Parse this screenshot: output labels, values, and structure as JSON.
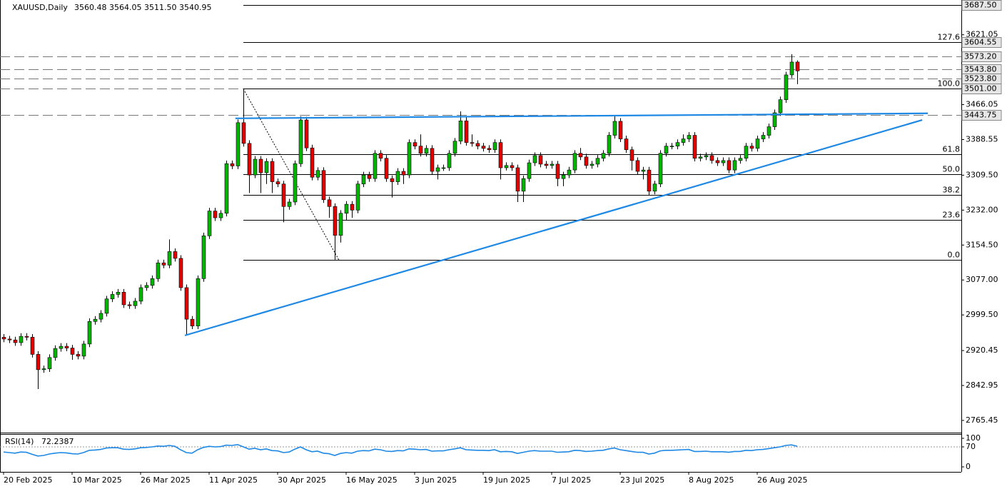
{
  "chart_data": {
    "type": "candlestick",
    "title": "XAUUSD,Daily",
    "ohlc_labels": [
      "3560.48",
      "3564.05",
      "3511.50",
      "3540.95"
    ],
    "up_color": "#00b400",
    "down_color": "#e00000",
    "ylim": [
      2740,
      3695
    ],
    "yticks": [
      3621.05,
      3466.05,
      3388.55,
      {
        "value": 3309.5,
        "label": "3309.50"
      },
      {
        "value": 3232,
        "label": "3232.00"
      },
      {
        "value": 3154.5,
        "label": "3154.50"
      },
      {
        "value": 3077,
        "label": "3077.00"
      },
      {
        "value": 2999.5,
        "label": "2999.50"
      },
      2920.45,
      2842.95,
      2765.45
    ],
    "categories": [
      "20 Feb 2025",
      null,
      null,
      null,
      null,
      null,
      null,
      null,
      null,
      null,
      null,
      null,
      "10 Mar 2025",
      null,
      null,
      null,
      null,
      null,
      null,
      null,
      null,
      null,
      null,
      null,
      "26 Mar 2025",
      null,
      null,
      null,
      null,
      null,
      null,
      null,
      null,
      null,
      null,
      null,
      "11 Apr 2025",
      null,
      null,
      null,
      null,
      null,
      null,
      null,
      null,
      null,
      null,
      null,
      "30 Apr 2025",
      null,
      null,
      null,
      null,
      null,
      null,
      null,
      null,
      null,
      null,
      null,
      "16 May 2025",
      null,
      null,
      null,
      null,
      null,
      null,
      null,
      null,
      null,
      null,
      null,
      "3 Jun 2025",
      null,
      null,
      null,
      null,
      null,
      null,
      null,
      null,
      null,
      null,
      null,
      "19 Jun 2025",
      null,
      null,
      null,
      null,
      null,
      null,
      null,
      null,
      null,
      null,
      null,
      "7 Jul 2025",
      null,
      null,
      null,
      null,
      null,
      null,
      null,
      null,
      null,
      null,
      null,
      "23 Jul 2025",
      null,
      null,
      null,
      null,
      null,
      null,
      null,
      null,
      null,
      null,
      null,
      "8 Aug 2025",
      null,
      null,
      null,
      null,
      null,
      null,
      null,
      null,
      null,
      null,
      null,
      "26 Aug 2025",
      null,
      null,
      null,
      null,
      null,
      null,
      null
    ],
    "ohlc": [
      [
        2950,
        2957,
        2939,
        2946
      ],
      [
        2946,
        2953,
        2937,
        2944
      ],
      [
        2944,
        2951,
        2931,
        2938
      ],
      [
        2938,
        2959,
        2931,
        2952
      ],
      [
        2952,
        2959,
        2943,
        2950
      ],
      [
        2950,
        2957,
        2905,
        2912
      ],
      [
        2912,
        2919,
        2835,
        2878
      ],
      [
        2878,
        2887,
        2871,
        2880
      ],
      [
        2880,
        2912,
        2873,
        2905
      ],
      [
        2905,
        2932,
        2898,
        2925
      ],
      [
        2925,
        2937,
        2918,
        2930
      ],
      [
        2930,
        2937,
        2919,
        2926
      ],
      [
        2926,
        2933,
        2900,
        2912
      ],
      [
        2912,
        2919,
        2901,
        2908
      ],
      [
        2908,
        2942,
        2901,
        2935
      ],
      [
        2935,
        2992,
        2928,
        2985
      ],
      [
        2985,
        2997,
        2978,
        2990
      ],
      [
        2990,
        3010,
        2983,
        3003
      ],
      [
        3003,
        3042,
        2996,
        3035
      ],
      [
        3035,
        3052,
        3028,
        3045
      ],
      [
        3045,
        3057,
        3038,
        3050
      ],
      [
        3050,
        3057,
        3015,
        3022
      ],
      [
        3022,
        3029,
        3013,
        3020
      ],
      [
        3020,
        3037,
        3013,
        3030
      ],
      [
        3030,
        3067,
        3023,
        3060
      ],
      [
        3060,
        3072,
        3053,
        3065
      ],
      [
        3065,
        3087,
        3058,
        3080
      ],
      [
        3080,
        3122,
        3073,
        3115
      ],
      [
        3115,
        3122,
        3103,
        3110
      ],
      [
        3110,
        3167,
        3103,
        3140
      ],
      [
        3140,
        3147,
        3118,
        3125
      ],
      [
        3125,
        3132,
        3053,
        3060
      ],
      [
        3060,
        3067,
        2955,
        2990
      ],
      [
        2990,
        2997,
        2968,
        2975
      ],
      [
        2975,
        3087,
        2968,
        3080
      ],
      [
        3080,
        3182,
        3073,
        3175
      ],
      [
        3175,
        3237,
        3168,
        3230
      ],
      [
        3230,
        3237,
        3208,
        3215
      ],
      [
        3215,
        3232,
        3208,
        3225
      ],
      [
        3225,
        3342,
        3218,
        3335
      ],
      [
        3335,
        3342,
        3323,
        3330
      ],
      [
        3330,
        3433,
        3323,
        3426
      ],
      [
        3426,
        3500,
        3373,
        3380
      ],
      [
        3380,
        3387,
        3270,
        3310
      ],
      [
        3310,
        3352,
        3303,
        3345
      ],
      [
        3345,
        3352,
        3270,
        3315
      ],
      [
        3315,
        3347,
        3290,
        3340
      ],
      [
        3340,
        3347,
        3270,
        3295
      ],
      [
        3295,
        3302,
        3283,
        3290
      ],
      [
        3290,
        3297,
        3205,
        3240
      ],
      [
        3240,
        3257,
        3233,
        3250
      ],
      [
        3250,
        3342,
        3243,
        3335
      ],
      [
        3335,
        3440,
        3328,
        3432
      ],
      [
        3432,
        3439,
        3363,
        3370
      ],
      [
        3370,
        3377,
        3298,
        3305
      ],
      [
        3305,
        3327,
        3298,
        3320
      ],
      [
        3320,
        3327,
        3248,
        3255
      ],
      [
        3255,
        3262,
        3215,
        3240
      ],
      [
        3240,
        3247,
        3122,
        3176
      ],
      [
        3176,
        3232,
        3160,
        3225
      ],
      [
        3225,
        3252,
        3210,
        3245
      ],
      [
        3245,
        3252,
        3215,
        3232
      ],
      [
        3232,
        3297,
        3225,
        3290
      ],
      [
        3290,
        3317,
        3283,
        3310
      ],
      [
        3310,
        3317,
        3295,
        3302
      ],
      [
        3302,
        3365,
        3295,
        3358
      ],
      [
        3358,
        3365,
        3340,
        3347
      ],
      [
        3347,
        3354,
        3295,
        3302
      ],
      [
        3302,
        3309,
        3260,
        3295
      ],
      [
        3295,
        3325,
        3288,
        3318
      ],
      [
        3318,
        3325,
        3290,
        3310
      ],
      [
        3310,
        3389,
        3303,
        3382
      ],
      [
        3382,
        3389,
        3367,
        3374
      ],
      [
        3374,
        3400,
        3351,
        3358
      ],
      [
        3358,
        3376,
        3351,
        3369
      ],
      [
        3369,
        3376,
        3311,
        3318
      ],
      [
        3318,
        3333,
        3300,
        3326
      ],
      [
        3326,
        3333,
        3319,
        3326
      ],
      [
        3326,
        3365,
        3319,
        3358
      ],
      [
        3358,
        3392,
        3351,
        3385
      ],
      [
        3385,
        3451,
        3378,
        3430
      ],
      [
        3430,
        3440,
        3375,
        3382
      ],
      [
        3382,
        3400,
        3373,
        3380
      ],
      [
        3380,
        3387,
        3367,
        3374
      ],
      [
        3374,
        3381,
        3362,
        3369
      ],
      [
        3369,
        3376,
        3359,
        3366
      ],
      [
        3366,
        3389,
        3359,
        3382
      ],
      [
        3382,
        3389,
        3300,
        3326
      ],
      [
        3326,
        3338,
        3320,
        3331
      ],
      [
        3331,
        3338,
        3319,
        3326
      ],
      [
        3326,
        3333,
        3250,
        3274
      ],
      [
        3274,
        3309,
        3250,
        3302
      ],
      [
        3302,
        3344,
        3295,
        3337
      ],
      [
        3337,
        3360,
        3330,
        3353
      ],
      [
        3353,
        3360,
        3327,
        3334
      ],
      [
        3334,
        3341,
        3324,
        3331
      ],
      [
        3331,
        3341,
        3324,
        3334
      ],
      [
        3334,
        3341,
        3285,
        3302
      ],
      [
        3302,
        3317,
        3285,
        3310
      ],
      [
        3310,
        3328,
        3303,
        3321
      ],
      [
        3321,
        3365,
        3314,
        3358
      ],
      [
        3358,
        3370,
        3343,
        3350
      ],
      [
        3350,
        3357,
        3324,
        3331
      ],
      [
        3331,
        3341,
        3324,
        3334
      ],
      [
        3334,
        3354,
        3327,
        3347
      ],
      [
        3347,
        3365,
        3340,
        3358
      ],
      [
        3358,
        3405,
        3351,
        3398
      ],
      [
        3398,
        3440,
        3391,
        3429
      ],
      [
        3429,
        3436,
        3383,
        3390
      ],
      [
        3390,
        3397,
        3359,
        3366
      ],
      [
        3366,
        3373,
        3320,
        3342
      ],
      [
        3342,
        3349,
        3311,
        3318
      ],
      [
        3318,
        3328,
        3300,
        3321
      ],
      [
        3321,
        3328,
        3265,
        3274
      ],
      [
        3274,
        3297,
        3267,
        3290
      ],
      [
        3290,
        3365,
        3283,
        3358
      ],
      [
        3358,
        3381,
        3351,
        3374
      ],
      [
        3374,
        3381,
        3367,
        3374
      ],
      [
        3374,
        3389,
        3367,
        3382
      ],
      [
        3382,
        3400,
        3375,
        3390
      ],
      [
        3390,
        3405,
        3383,
        3398
      ],
      [
        3398,
        3405,
        3340,
        3347
      ],
      [
        3347,
        3357,
        3340,
        3350
      ],
      [
        3350,
        3360,
        3343,
        3353
      ],
      [
        3353,
        3360,
        3335,
        3342
      ],
      [
        3342,
        3349,
        3330,
        3337
      ],
      [
        3337,
        3349,
        3330,
        3342
      ],
      [
        3342,
        3349,
        3314,
        3321
      ],
      [
        3321,
        3349,
        3314,
        3342
      ],
      [
        3342,
        3354,
        3335,
        3347
      ],
      [
        3347,
        3381,
        3340,
        3374
      ],
      [
        3374,
        3381,
        3362,
        3369
      ],
      [
        3369,
        3397,
        3362,
        3390
      ],
      [
        3390,
        3405,
        3383,
        3398
      ],
      [
        3398,
        3424,
        3391,
        3417
      ],
      [
        3417,
        3455,
        3410,
        3448
      ],
      [
        3448,
        3484,
        3441,
        3477
      ],
      [
        3477,
        3539,
        3470,
        3532
      ],
      [
        3532,
        3578,
        3525,
        3560.48
      ],
      [
        3560.48,
        3564.05,
        3511.5,
        3540.95
      ]
    ],
    "price_levels": [
      {
        "value": 3687.5,
        "label": "3687.50",
        "line": "solid"
      },
      {
        "value": 3604.55,
        "label": "3604.55",
        "line": "none"
      },
      {
        "value": 3573.2,
        "label": "3573.20",
        "line": "dashed"
      },
      {
        "value": 3543.8,
        "label": "3543.80",
        "line": "dashed"
      },
      {
        "value": 3523.8,
        "label": "3523.80",
        "line": "dashed"
      },
      {
        "value": 3501,
        "label": "3501.00",
        "line": "dashed"
      },
      {
        "value": 3443.75,
        "label": "3443.75",
        "line": "dashed"
      }
    ],
    "fib_anchor": {
      "x": [
        42,
        58.75
      ],
      "y": [
        3501,
        3121
      ]
    },
    "fib_levels": [
      {
        "label": "127.6",
        "price": 3604.55
      },
      {
        "label": "100.0",
        "price": 3501
      },
      {
        "label": "61.8",
        "price": 3356
      },
      {
        "label": "50.0",
        "price": 3311
      },
      {
        "label": "38.2",
        "price": 3266
      },
      {
        "label": "23.6",
        "price": 3211
      },
      {
        "label": "0.0",
        "price": 3121
      }
    ],
    "trendlines": [
      {
        "color": "#1e88e5",
        "x": [
          40.6,
          161.9
        ],
        "y": [
          3435.6,
          3446.7
        ]
      },
      {
        "color": "#1e88e5",
        "x": [
          31.75,
          160.9
        ],
        "y": [
          2954,
          3432
        ]
      }
    ],
    "indicator": {
      "name": "RSI(14)",
      "color": "#1e88e5",
      "ylim": [
        0,
        100
      ],
      "yticks": [
        100,
        70,
        0
      ],
      "level": 70,
      "values": [
        52,
        50,
        48,
        52,
        51,
        44,
        38,
        40,
        45,
        48,
        50,
        49,
        46,
        45,
        50,
        58,
        59,
        61,
        66,
        67,
        67,
        62,
        61,
        63,
        67,
        68,
        70,
        73,
        72,
        75,
        72,
        60,
        50,
        48,
        60,
        68,
        72,
        70,
        71,
        76,
        75,
        78,
        70,
        62,
        65,
        60,
        63,
        57,
        56,
        50,
        52,
        62,
        70,
        60,
        53,
        55,
        48,
        46,
        40,
        47,
        50,
        48,
        55,
        57,
        56,
        62,
        60,
        55,
        54,
        57,
        56,
        63,
        62,
        60,
        61,
        55,
        56,
        56,
        60,
        63,
        67,
        60,
        59,
        58,
        58,
        57,
        60,
        53,
        54,
        53,
        47,
        51,
        55,
        57,
        55,
        55,
        55,
        51,
        52,
        53,
        58,
        57,
        54,
        55,
        57,
        58,
        63,
        66,
        60,
        57,
        54,
        51,
        51,
        45,
        48,
        56,
        58,
        58,
        59,
        60,
        61,
        54,
        54,
        55,
        53,
        53,
        53,
        51,
        54,
        54,
        58,
        57,
        60,
        61,
        64,
        67,
        70,
        75,
        77,
        72.2387
      ]
    }
  }
}
